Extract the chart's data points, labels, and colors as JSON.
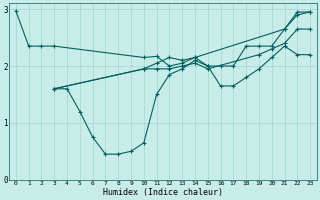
{
  "xlabel": "Humidex (Indice chaleur)",
  "bg_color": "#c8ece8",
  "line_color": "#006060",
  "grid_color": "#a8d8d4",
  "xlim": [
    -0.5,
    23.5
  ],
  "ylim": [
    0,
    3.1
  ],
  "yticks": [
    0,
    1,
    2,
    3
  ],
  "xticks": [
    0,
    1,
    2,
    3,
    4,
    5,
    6,
    7,
    8,
    9,
    10,
    11,
    12,
    13,
    14,
    15,
    16,
    17,
    18,
    19,
    20,
    21,
    22,
    23
  ],
  "lines": [
    {
      "x": [
        0,
        1,
        2,
        3,
        10,
        11,
        12,
        13,
        14,
        15,
        16,
        17,
        18,
        19,
        20,
        21,
        22,
        23
      ],
      "y": [
        2.97,
        2.35,
        2.35,
        2.35,
        2.15,
        2.17,
        2.0,
        2.05,
        2.15,
        2.0,
        2.0,
        2.0,
        2.35,
        2.35,
        2.35,
        2.65,
        2.95,
        2.95
      ]
    },
    {
      "x": [
        3,
        4,
        5,
        6,
        7,
        8,
        9,
        10,
        11,
        12,
        13,
        14,
        15,
        16,
        17,
        18,
        19,
        20,
        21,
        22,
        23
      ],
      "y": [
        1.6,
        1.6,
        1.2,
        0.75,
        0.45,
        0.45,
        0.5,
        0.65,
        1.5,
        1.85,
        1.95,
        2.1,
        2.0,
        1.65,
        1.65,
        1.8,
        1.95,
        2.15,
        2.35,
        2.2,
        2.2
      ]
    },
    {
      "x": [
        3,
        10,
        11,
        12,
        13,
        14,
        15,
        19,
        20,
        21,
        22,
        23
      ],
      "y": [
        1.6,
        1.95,
        1.95,
        1.95,
        2.0,
        2.05,
        1.95,
        2.2,
        2.3,
        2.4,
        2.65,
        2.65
      ]
    },
    {
      "x": [
        3,
        10,
        11,
        12,
        13,
        14,
        21,
        22,
        23
      ],
      "y": [
        1.6,
        1.95,
        2.05,
        2.15,
        2.1,
        2.15,
        2.65,
        2.9,
        2.95
      ]
    }
  ]
}
